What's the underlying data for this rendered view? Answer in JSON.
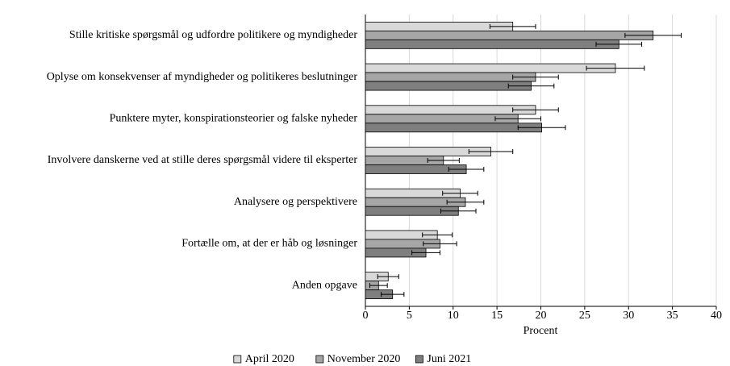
{
  "chart_data": {
    "type": "barh",
    "xlabel": "Procent",
    "categories": [
      "Stille kritiske spørgsmål og udfordre politikere og myndigheder",
      "Oplyse om konsekvenser af myndigheder og politikeres beslutninger",
      "Punktere myter, konspirationsteorier og falske nyheder",
      "Involvere danskerne ved at stille deres spørgsmål videre til eksperter",
      "Analysere og perspektivere",
      "Fortælle om, at der er håb og løsninger",
      "Anden opgave"
    ],
    "series": [
      {
        "name": "April 2020",
        "color": "#d9d9d9",
        "values": [
          16.8,
          28.5,
          19.4,
          14.3,
          10.8,
          8.2,
          2.6
        ],
        "errors": [
          2.6,
          3.3,
          2.6,
          2.5,
          2.0,
          1.7,
          1.2
        ]
      },
      {
        "name": "November 2020",
        "color": "#a6a6a6",
        "values": [
          32.8,
          19.4,
          17.4,
          8.9,
          11.4,
          8.5,
          1.5
        ],
        "errors": [
          3.2,
          2.6,
          2.6,
          1.8,
          2.1,
          1.9,
          1.0
        ]
      },
      {
        "name": "Juni 2021",
        "color": "#7f7f7f",
        "values": [
          28.9,
          18.9,
          20.1,
          11.5,
          10.6,
          6.9,
          3.1
        ],
        "errors": [
          2.6,
          2.6,
          2.7,
          2.0,
          2.0,
          1.6,
          1.3
        ]
      }
    ],
    "xlim": [
      0,
      40
    ],
    "xticks": [
      0,
      5,
      10,
      15,
      20,
      25,
      30,
      35,
      40
    ],
    "grid": true,
    "legend": "bottom"
  }
}
